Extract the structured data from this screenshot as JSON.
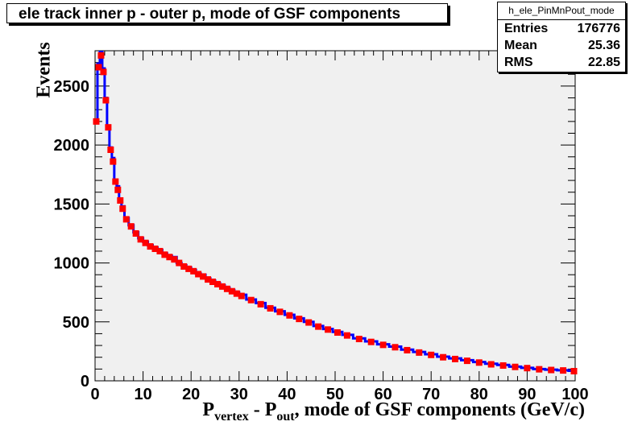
{
  "title": "ele track inner p - outer p, mode of GSF components",
  "stats": {
    "name": "h_ele_PinMnPout_mode",
    "entries_label": "Entries",
    "entries_value": "176776",
    "mean_label": "Mean",
    "mean_value": "25.36",
    "rms_label": "RMS",
    "rms_value": "22.85"
  },
  "axes": {
    "y_title": "Events",
    "x_title_p1": "P",
    "x_title_sub1": "vertex",
    "x_title_mid": " - P",
    "x_title_sub2": "out",
    "x_title_rest": ", mode of GSF components (GeV/c)"
  },
  "colors": {
    "frame_fill": "#f0f0f0",
    "histogram": "#0000ff",
    "markers": "#ff0000"
  },
  "chart_data": {
    "type": "line",
    "xlim": [
      0,
      100
    ],
    "ylim": [
      0,
      2800
    ],
    "x_ticks": [
      0,
      10,
      20,
      30,
      40,
      50,
      60,
      70,
      80,
      90,
      100
    ],
    "x_tick_labels": [
      "0",
      "10",
      "20",
      "30",
      "40",
      "50",
      "60",
      "70",
      "80",
      "90",
      "100"
    ],
    "y_ticks": [
      0,
      500,
      1000,
      1500,
      2000,
      2500
    ],
    "y_tick_labels": [
      "0",
      "500",
      "1000",
      "1500",
      "2000",
      "2500"
    ],
    "grid": false,
    "series": [
      {
        "style": "histogram",
        "x": [
          0.25,
          0.75,
          1.25,
          1.75,
          2.25,
          2.75,
          3.25,
          3.75,
          4.25,
          4.75,
          5.25,
          5.75,
          6.5,
          7.5,
          8.5,
          9.5,
          10.5,
          11.5,
          12.5,
          13.5,
          14.5,
          15.5,
          16.5,
          17.5,
          18.5,
          19.5,
          20.5,
          21.5,
          22.5,
          23.5,
          24.5,
          25.5,
          26.5,
          27.5,
          28.5,
          29.5,
          30.5,
          32.5,
          34.5,
          36.5,
          38.5,
          40.5,
          42.5,
          44.5,
          46.5,
          48.5,
          50.5,
          52.5,
          55,
          57.5,
          60,
          62.5,
          65,
          67.5,
          70,
          72.5,
          75,
          77.5,
          80,
          82.5,
          85,
          87.5,
          90,
          92.5,
          95,
          97.5,
          99.75
        ],
        "y": [
          2200,
          2690,
          2790,
          2650,
          2400,
          2160,
          1980,
          1890,
          1700,
          1650,
          1540,
          1480,
          1380,
          1320,
          1260,
          1210,
          1180,
          1150,
          1130,
          1110,
          1080,
          1060,
          1050,
          1000,
          980,
          960,
          940,
          910,
          900,
          870,
          850,
          830,
          810,
          790,
          770,
          750,
          730,
          690,
          660,
          620,
          590,
          560,
          530,
          500,
          465,
          440,
          415,
          390,
          360,
          335,
          310,
          290,
          265,
          245,
          225,
          205,
          190,
          175,
          160,
          145,
          135,
          120,
          110,
          100,
          95,
          90,
          85
        ]
      },
      {
        "style": "markers",
        "x": [
          0.25,
          0.75,
          1.25,
          1.75,
          2.25,
          2.75,
          3.25,
          3.75,
          4.25,
          4.75,
          5.25,
          5.75,
          6.5,
          7.5,
          8.5,
          9.5,
          10.5,
          11.5,
          12.5,
          13.5,
          14.5,
          15.5,
          16.5,
          17.5,
          18.5,
          19.5,
          20.5,
          21.5,
          22.5,
          23.5,
          24.5,
          25.5,
          26.5,
          27.5,
          28.5,
          29.5,
          30.5,
          32.5,
          34.5,
          36.5,
          38.5,
          40.5,
          42.5,
          44.5,
          46.5,
          48.5,
          50.5,
          52.5,
          55,
          57.5,
          60,
          62.5,
          65,
          67.5,
          70,
          72.5,
          75,
          77.5,
          80,
          82.5,
          85,
          87.5,
          90,
          92.5,
          95,
          97.5,
          99.75
        ],
        "y": [
          2200,
          2660,
          2760,
          2620,
          2380,
          2150,
          1960,
          1860,
          1690,
          1620,
          1530,
          1460,
          1370,
          1310,
          1250,
          1200,
          1170,
          1140,
          1120,
          1100,
          1070,
          1050,
          1030,
          1000,
          970,
          950,
          930,
          905,
          885,
          860,
          840,
          820,
          800,
          780,
          760,
          740,
          720,
          685,
          650,
          615,
          585,
          555,
          525,
          495,
          460,
          435,
          410,
          385,
          355,
          330,
          305,
          285,
          260,
          240,
          220,
          200,
          185,
          170,
          155,
          140,
          130,
          118,
          108,
          98,
          92,
          88,
          82
        ]
      }
    ]
  }
}
